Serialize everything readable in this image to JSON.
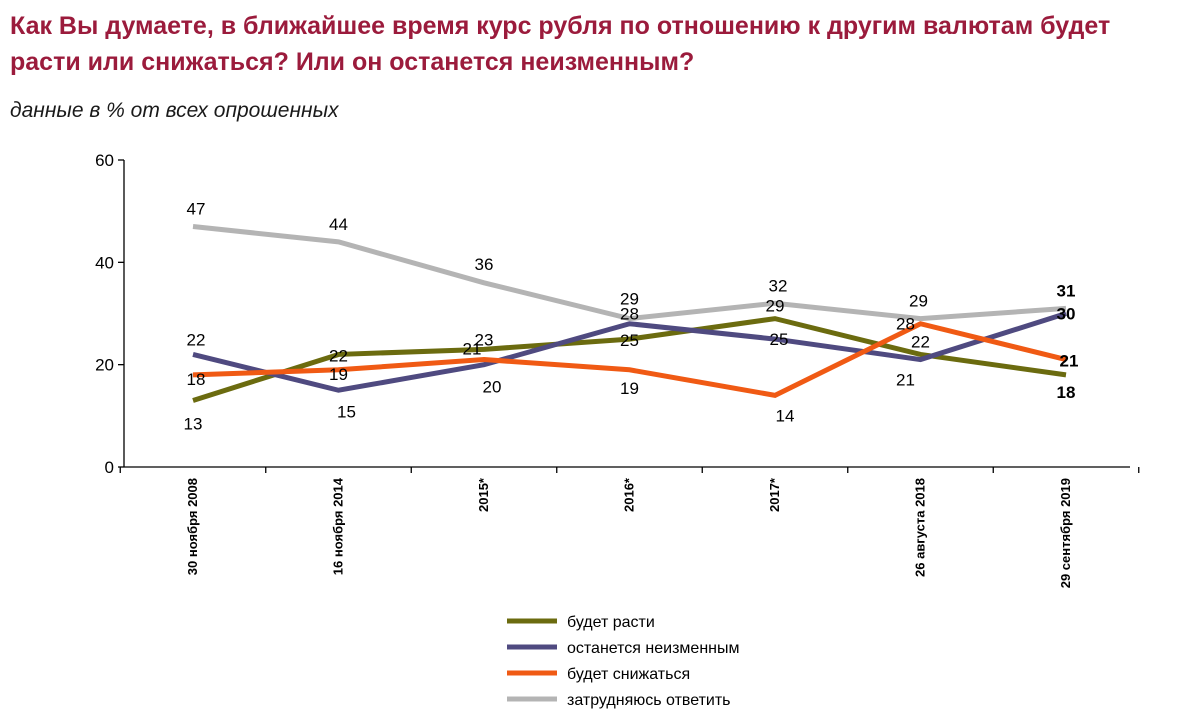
{
  "header": {
    "title": "Как Вы думаете, в ближайшее время курс рубля по отношению к другим валютам будет расти или снижаться? Или он останется неизменным?",
    "subtitle": "данные в % от всех опрошенных"
  },
  "chart_data": {
    "type": "line",
    "categories": [
      "30 ноября 2008",
      "16 ноября 2014",
      "2015*",
      "2016*",
      "2017*",
      "26 августа 2018",
      "29 сентября 2019"
    ],
    "ylim": [
      0,
      60
    ],
    "yticks": [
      0,
      20,
      40,
      60
    ],
    "grid": false,
    "legend_position": "bottom",
    "series": [
      {
        "name": "будет расти",
        "color": "#6b6b0f",
        "values": [
          13,
          22,
          23,
          25,
          29,
          22,
          18
        ]
      },
      {
        "name": "останется неизменным",
        "color": "#4f4a80",
        "values": [
          22,
          15,
          20,
          28,
          25,
          21,
          30
        ]
      },
      {
        "name": "будет снижаться",
        "color": "#f05a14",
        "values": [
          18,
          19,
          21,
          19,
          14,
          28,
          21
        ]
      },
      {
        "name": "затрудняюсь ответить",
        "color": "#b4b4b4",
        "values": [
          47,
          44,
          36,
          29,
          32,
          29,
          31
        ]
      }
    ]
  }
}
